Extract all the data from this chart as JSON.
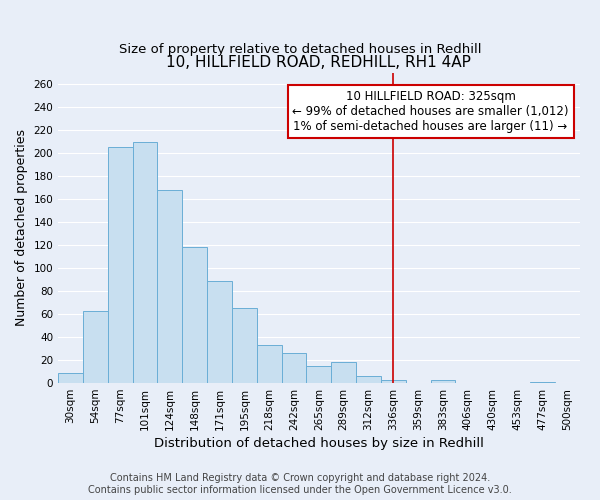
{
  "title": "10, HILLFIELD ROAD, REDHILL, RH1 4AP",
  "subtitle": "Size of property relative to detached houses in Redhill",
  "xlabel": "Distribution of detached houses by size in Redhill",
  "ylabel": "Number of detached properties",
  "bar_labels": [
    "30sqm",
    "54sqm",
    "77sqm",
    "101sqm",
    "124sqm",
    "148sqm",
    "171sqm",
    "195sqm",
    "218sqm",
    "242sqm",
    "265sqm",
    "289sqm",
    "312sqm",
    "336sqm",
    "359sqm",
    "383sqm",
    "406sqm",
    "430sqm",
    "453sqm",
    "477sqm",
    "500sqm"
  ],
  "bar_heights": [
    9,
    63,
    205,
    210,
    168,
    118,
    89,
    65,
    33,
    26,
    15,
    18,
    6,
    3,
    0,
    3,
    0,
    0,
    0,
    1,
    0
  ],
  "bar_color": "#c8dff0",
  "bar_edge_color": "#6aaed6",
  "vline_x": 13.0,
  "vline_color": "#cc0000",
  "annotation_title": "10 HILLFIELD ROAD: 325sqm",
  "annotation_line2": "← 99% of detached houses are smaller (1,012)",
  "annotation_line3": "1% of semi-detached houses are larger (11) →",
  "annotation_box_color": "#ffffff",
  "annotation_box_edge_color": "#cc0000",
  "ylim": [
    0,
    270
  ],
  "yticks": [
    0,
    20,
    40,
    60,
    80,
    100,
    120,
    140,
    160,
    180,
    200,
    220,
    240,
    260
  ],
  "footer_line1": "Contains HM Land Registry data © Crown copyright and database right 2024.",
  "footer_line2": "Contains public sector information licensed under the Open Government Licence v3.0.",
  "bg_color": "#e8eef8",
  "grid_color": "#ffffff",
  "title_fontsize": 11,
  "subtitle_fontsize": 9.5,
  "xlabel_fontsize": 9.5,
  "ylabel_fontsize": 9,
  "tick_fontsize": 7.5,
  "annotation_fontsize": 8.5,
  "footer_fontsize": 7
}
